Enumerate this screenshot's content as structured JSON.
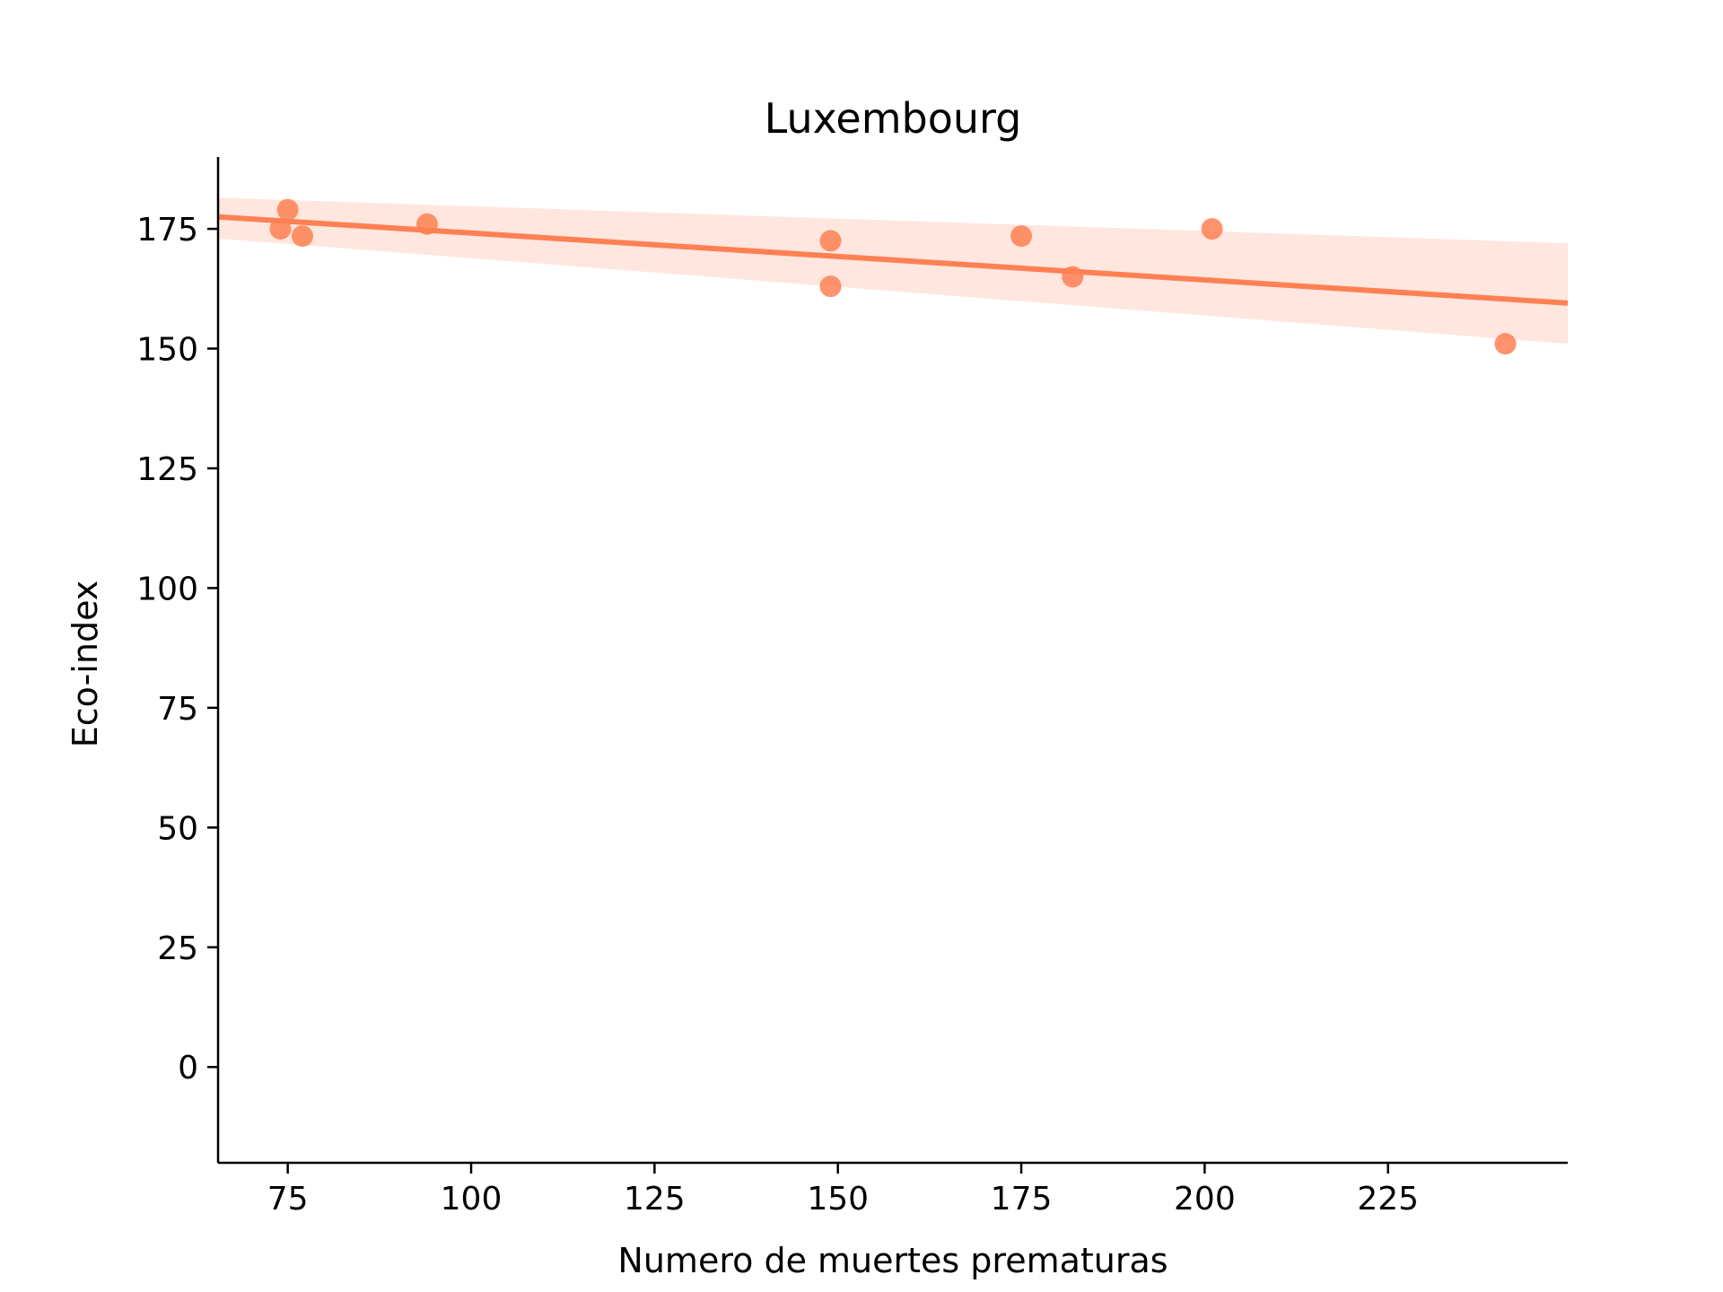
{
  "chart_data": {
    "type": "scatter",
    "title": "Luxembourg",
    "xlabel": "Numero de muertes prematuras",
    "ylabel": "Eco-index",
    "xlim": [
      65.5,
      249.5
    ],
    "ylim": [
      -20,
      190
    ],
    "xticks": [
      75,
      100,
      125,
      150,
      175,
      200,
      225
    ],
    "yticks": [
      0,
      25,
      50,
      75,
      100,
      125,
      150,
      175
    ],
    "points": [
      {
        "x": 74,
        "y": 175
      },
      {
        "x": 75,
        "y": 179
      },
      {
        "x": 77,
        "y": 173.5
      },
      {
        "x": 94,
        "y": 176
      },
      {
        "x": 149,
        "y": 172.5
      },
      {
        "x": 149,
        "y": 163
      },
      {
        "x": 175,
        "y": 173.5
      },
      {
        "x": 182,
        "y": 165
      },
      {
        "x": 201,
        "y": 175
      },
      {
        "x": 241,
        "y": 151
      }
    ],
    "regression": {
      "x": [
        65.5,
        249.5
      ],
      "y": [
        177.5,
        159.5
      ],
      "ci_upper": [
        181.5,
        172
      ],
      "ci_lower": [
        173,
        151
      ]
    },
    "colors": {
      "points": "#fe8053",
      "line": "#fe8053",
      "ci_band": "#ffe6de"
    },
    "grid": false,
    "legend": "none"
  }
}
